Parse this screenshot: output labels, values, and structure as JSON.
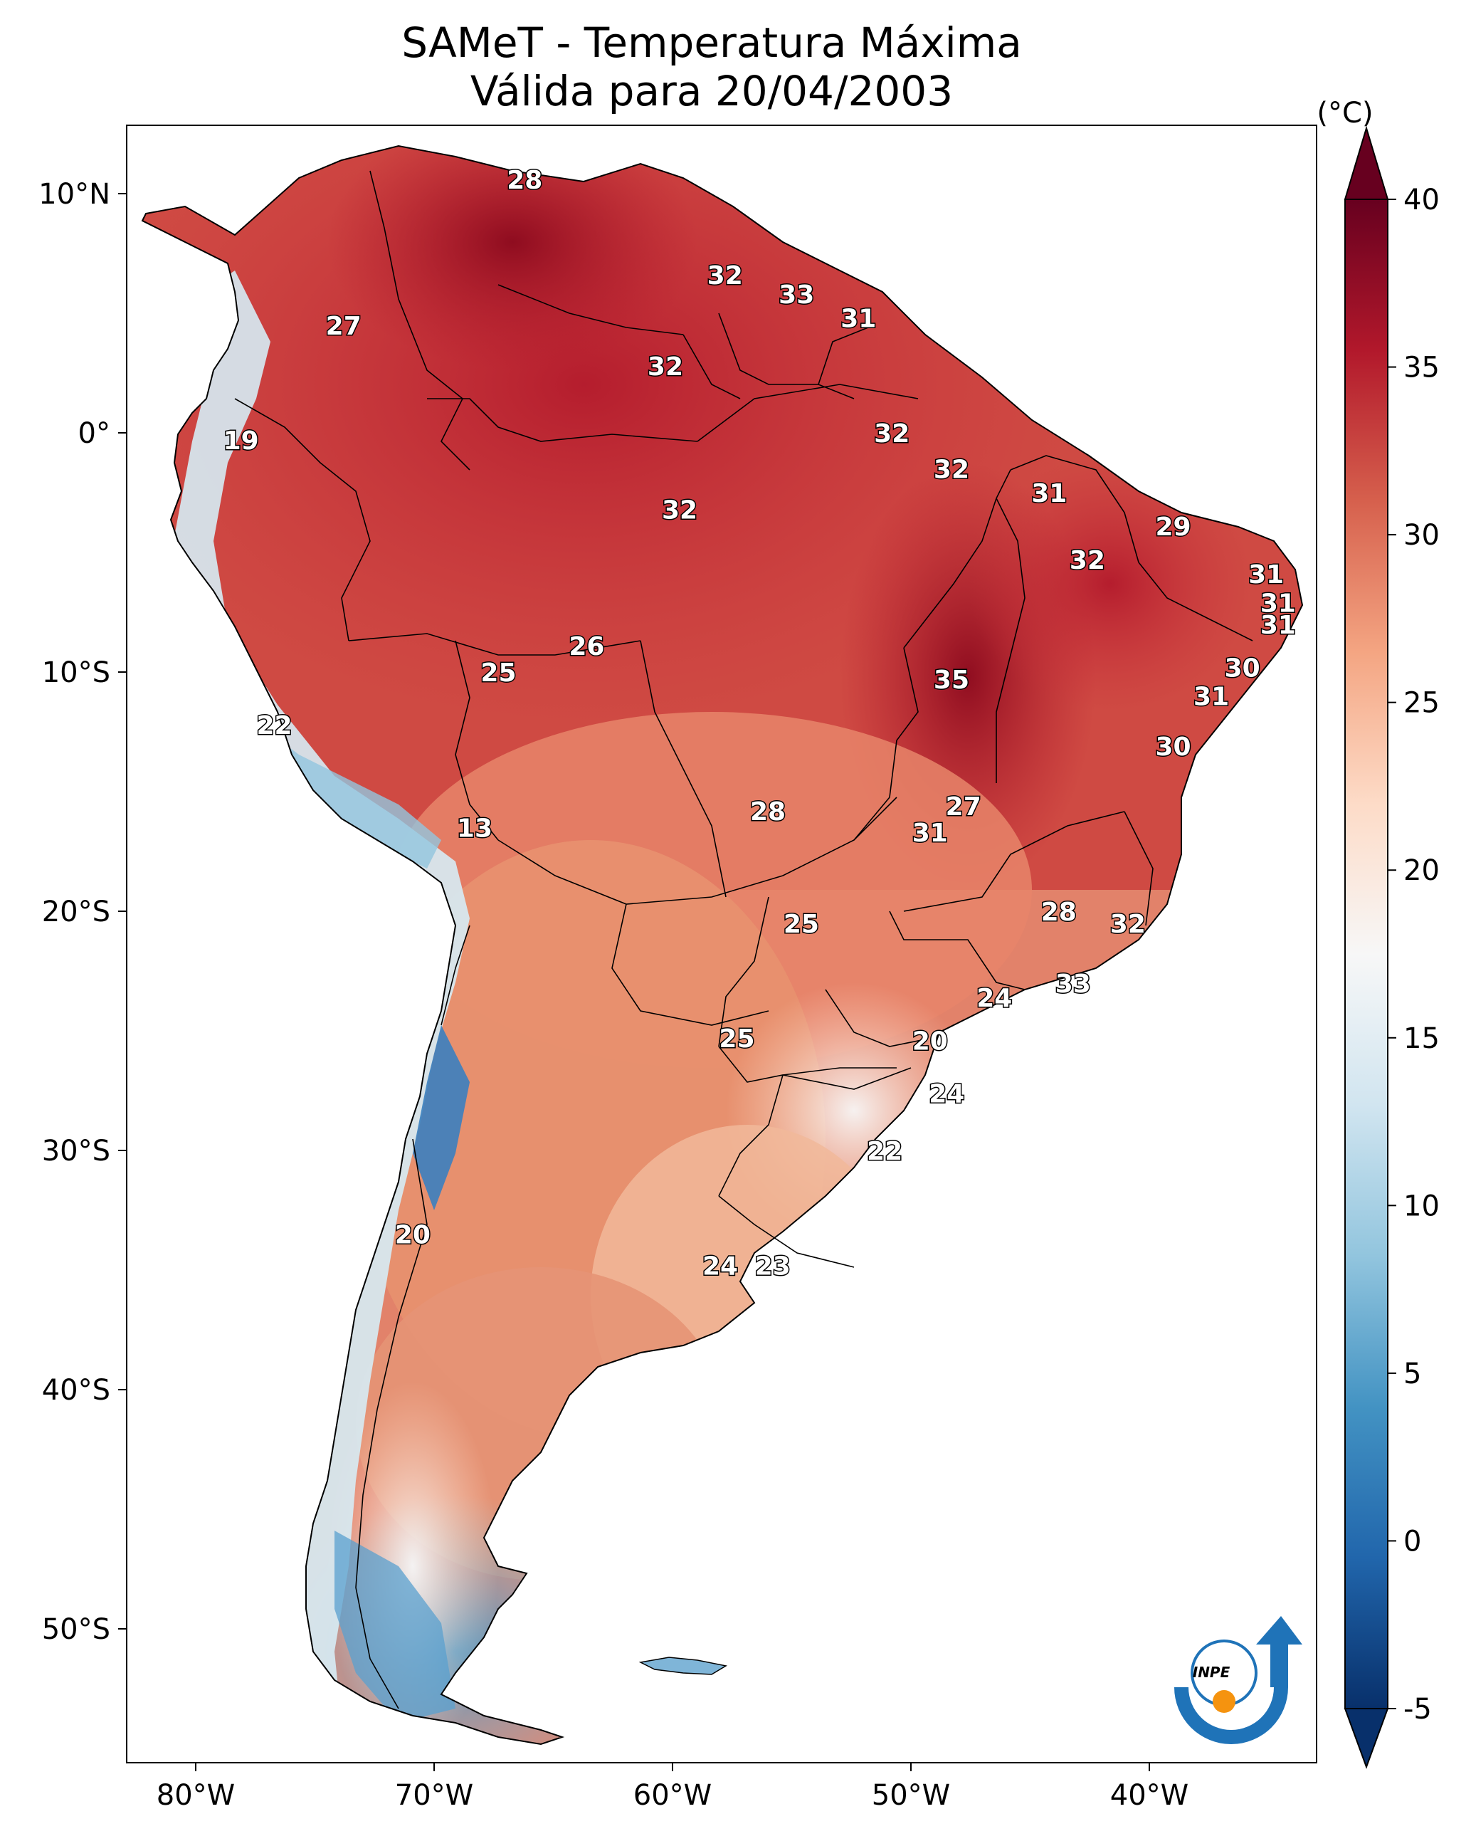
{
  "title": {
    "line1": "SAMeT - Temperatura Máxima",
    "line2": "Válida para 20/04/2003"
  },
  "axes": {
    "lon_ticks": [
      "80°W",
      "70°W",
      "60°W",
      "50°W",
      "40°W"
    ],
    "lat_ticks": [
      "10°N",
      "0°",
      "10°S",
      "20°S",
      "30°S",
      "40°S",
      "50°S"
    ]
  },
  "colorbar": {
    "unit": "(°C)",
    "ticks": [
      "40",
      "35",
      "30",
      "25",
      "20",
      "15",
      "10",
      "5",
      "0",
      "-5"
    ],
    "range": [
      -5,
      40
    ],
    "colors": [
      "#08306b",
      "#2166ac",
      "#4393c3",
      "#92c5de",
      "#d1e5f0",
      "#f7f7f7",
      "#fddbc7",
      "#f4a582",
      "#d6604d",
      "#b2182b",
      "#67001f"
    ]
  },
  "map_labels": [
    {
      "text": "28",
      "lon": -66.2,
      "lat": 10.6
    },
    {
      "text": "32",
      "lon": -57.8,
      "lat": 6.6
    },
    {
      "text": "33",
      "lon": -54.8,
      "lat": 5.8
    },
    {
      "text": "31",
      "lon": -52.2,
      "lat": 4.8
    },
    {
      "text": "27",
      "lon": -73.8,
      "lat": 4.5
    },
    {
      "text": "32",
      "lon": -60.3,
      "lat": 2.8
    },
    {
      "text": "32",
      "lon": -50.8,
      "lat": 0.0
    },
    {
      "text": "19",
      "lon": -78.1,
      "lat": -0.3
    },
    {
      "text": "32",
      "lon": -48.3,
      "lat": -1.5
    },
    {
      "text": "31",
      "lon": -44.2,
      "lat": -2.5
    },
    {
      "text": "32",
      "lon": -59.7,
      "lat": -3.2
    },
    {
      "text": "29",
      "lon": -39.0,
      "lat": -3.9
    },
    {
      "text": "32",
      "lon": -42.6,
      "lat": -5.3
    },
    {
      "text": "31",
      "lon": -35.1,
      "lat": -5.9
    },
    {
      "text": "31",
      "lon": -34.6,
      "lat": -7.1
    },
    {
      "text": "31",
      "lon": -34.6,
      "lat": -8.0
    },
    {
      "text": "26",
      "lon": -63.6,
      "lat": -8.9
    },
    {
      "text": "25",
      "lon": -67.3,
      "lat": -10.0
    },
    {
      "text": "30",
      "lon": -36.1,
      "lat": -9.8
    },
    {
      "text": "35",
      "lon": -48.3,
      "lat": -10.3
    },
    {
      "text": "31",
      "lon": -37.4,
      "lat": -11.0
    },
    {
      "text": "22",
      "lon": -76.7,
      "lat": -12.2
    },
    {
      "text": "30",
      "lon": -39.0,
      "lat": -13.1
    },
    {
      "text": "27",
      "lon": -47.8,
      "lat": -15.6
    },
    {
      "text": "28",
      "lon": -56.0,
      "lat": -15.8
    },
    {
      "text": "31",
      "lon": -49.2,
      "lat": -16.7
    },
    {
      "text": "13",
      "lon": -68.3,
      "lat": -16.5
    },
    {
      "text": "28",
      "lon": -43.8,
      "lat": -20.0
    },
    {
      "text": "32",
      "lon": -40.9,
      "lat": -20.5
    },
    {
      "text": "25",
      "lon": -54.6,
      "lat": -20.5
    },
    {
      "text": "33",
      "lon": -43.2,
      "lat": -23.0
    },
    {
      "text": "24",
      "lon": -46.5,
      "lat": -23.6
    },
    {
      "text": "25",
      "lon": -57.3,
      "lat": -25.3
    },
    {
      "text": "20",
      "lon": -49.2,
      "lat": -25.4
    },
    {
      "text": "24",
      "lon": -48.5,
      "lat": -27.6
    },
    {
      "text": "22",
      "lon": -51.1,
      "lat": -30.0
    },
    {
      "text": "20",
      "lon": -70.9,
      "lat": -33.5
    },
    {
      "text": "24",
      "lon": -58.0,
      "lat": -34.8
    },
    {
      "text": "23",
      "lon": -55.8,
      "lat": -34.8
    }
  ],
  "logo": {
    "text": "INPE"
  }
}
